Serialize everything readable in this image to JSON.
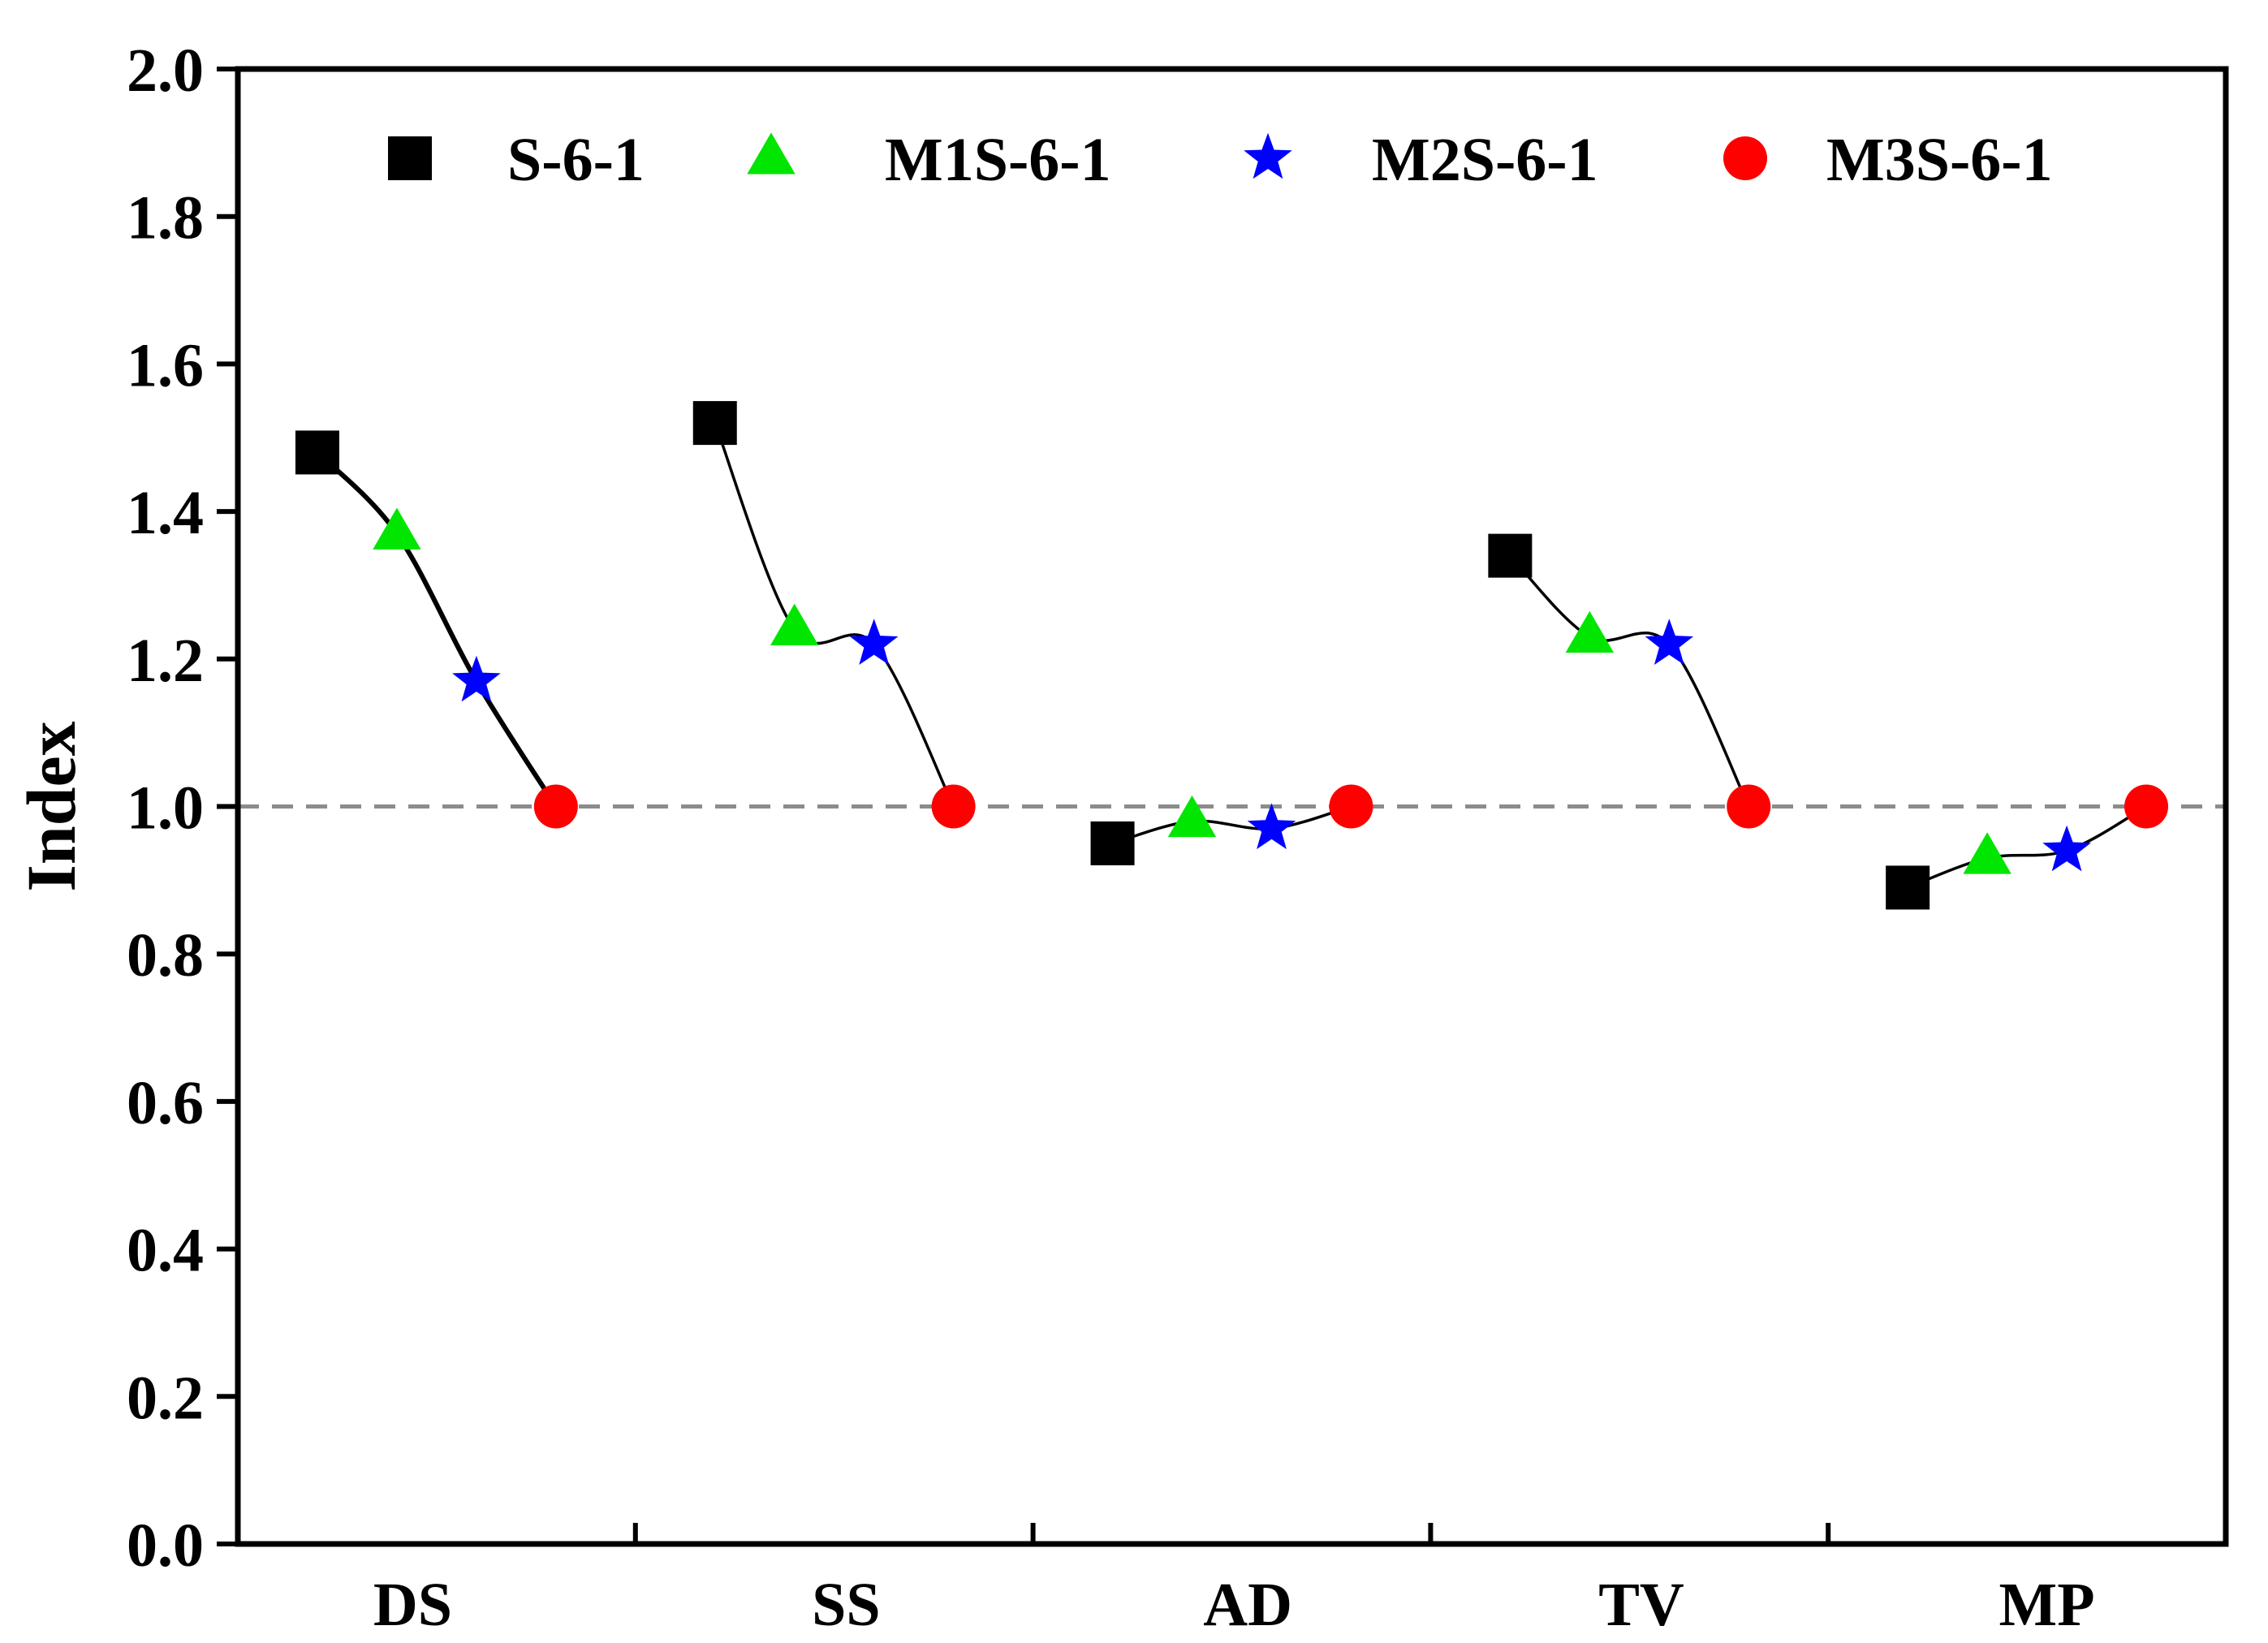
{
  "chart_data": {
    "type": "scatter",
    "title": "",
    "xlabel": "",
    "ylabel": "Index",
    "ylim": [
      0.0,
      2.0
    ],
    "yticks": [
      "0.0",
      "0.2",
      "0.4",
      "0.6",
      "0.8",
      "1.0",
      "1.2",
      "1.4",
      "1.6",
      "1.8",
      "2.0"
    ],
    "reference_line": 1.0,
    "groups": [
      "DS",
      "SS",
      "AD",
      "TV",
      "MP"
    ],
    "series": [
      {
        "name": "S-6-1",
        "marker": "square",
        "color": "#000000",
        "values": [
          1.48,
          1.52,
          0.95,
          1.34,
          0.89
        ]
      },
      {
        "name": "M1S-6-1",
        "marker": "triangle",
        "color": "#00e600",
        "values": [
          1.37,
          1.24,
          0.98,
          1.23,
          0.93
        ]
      },
      {
        "name": "M2S-6-1",
        "marker": "star",
        "color": "#0000ff",
        "values": [
          1.17,
          1.22,
          0.97,
          1.22,
          0.94
        ]
      },
      {
        "name": "M3S-6-1",
        "marker": "circle",
        "color": "#ff0000",
        "values": [
          1.0,
          1.0,
          1.0,
          1.0,
          1.0
        ]
      }
    ],
    "legend_position": "top"
  }
}
